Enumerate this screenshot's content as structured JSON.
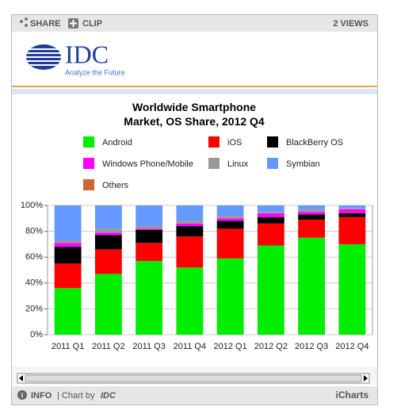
{
  "widget": {
    "share": "SHARE",
    "clip": "CLIP",
    "views": "2 VIEWS",
    "logo": "IDC",
    "tagline": "Analyze the Future",
    "info": "INFO",
    "chart_by": "| Chart by",
    "chart_by_brand": "IDC",
    "brand": "iCharts"
  },
  "chart_data": {
    "type": "stacked_bar",
    "title": "Worldwide Smartphone\nMarket, OS Share, 2012 Q4",
    "categories": [
      "2011 Q1",
      "2011 Q2",
      "2011 Q3",
      "2011 Q4",
      "2012 Q1",
      "2012 Q2",
      "2012 Q3",
      "2012 Q4"
    ],
    "series": [
      {
        "name": "Android",
        "color": "#00ee00",
        "values": [
          36,
          47,
          57,
          52,
          59,
          69,
          75,
          70
        ]
      },
      {
        "name": "iOS",
        "color": "#ff0000",
        "values": [
          19,
          19,
          14,
          24,
          23,
          17,
          14,
          21
        ]
      },
      {
        "name": "BlackBerry OS",
        "color": "#000000",
        "values": [
          13,
          11,
          10,
          8,
          6,
          5,
          4,
          3
        ]
      },
      {
        "name": "Windows Phone/Mobile",
        "color": "#ff00ff",
        "values": [
          3,
          2,
          1,
          2,
          2,
          3,
          2,
          3
        ]
      },
      {
        "name": "Linux",
        "color": "#999999",
        "values": [
          2,
          3,
          2,
          2,
          2,
          1,
          2,
          1
        ]
      },
      {
        "name": "Symbian",
        "color": "#6699ff",
        "values": [
          27,
          18,
          16,
          12,
          8,
          5,
          3,
          2
        ]
      },
      {
        "name": "Others",
        "color": "#cc6633",
        "values": [
          0,
          0,
          0,
          0,
          0,
          0,
          0,
          0
        ]
      }
    ],
    "ylim": [
      0,
      100
    ],
    "yticks": [
      {
        "value": 0,
        "label": "0%"
      },
      {
        "value": 20,
        "label": "20%"
      },
      {
        "value": 40,
        "label": "40%"
      },
      {
        "value": 60,
        "label": "60%"
      },
      {
        "value": 80,
        "label": "80%"
      },
      {
        "value": 100,
        "label": "100%"
      }
    ],
    "grid": true
  }
}
